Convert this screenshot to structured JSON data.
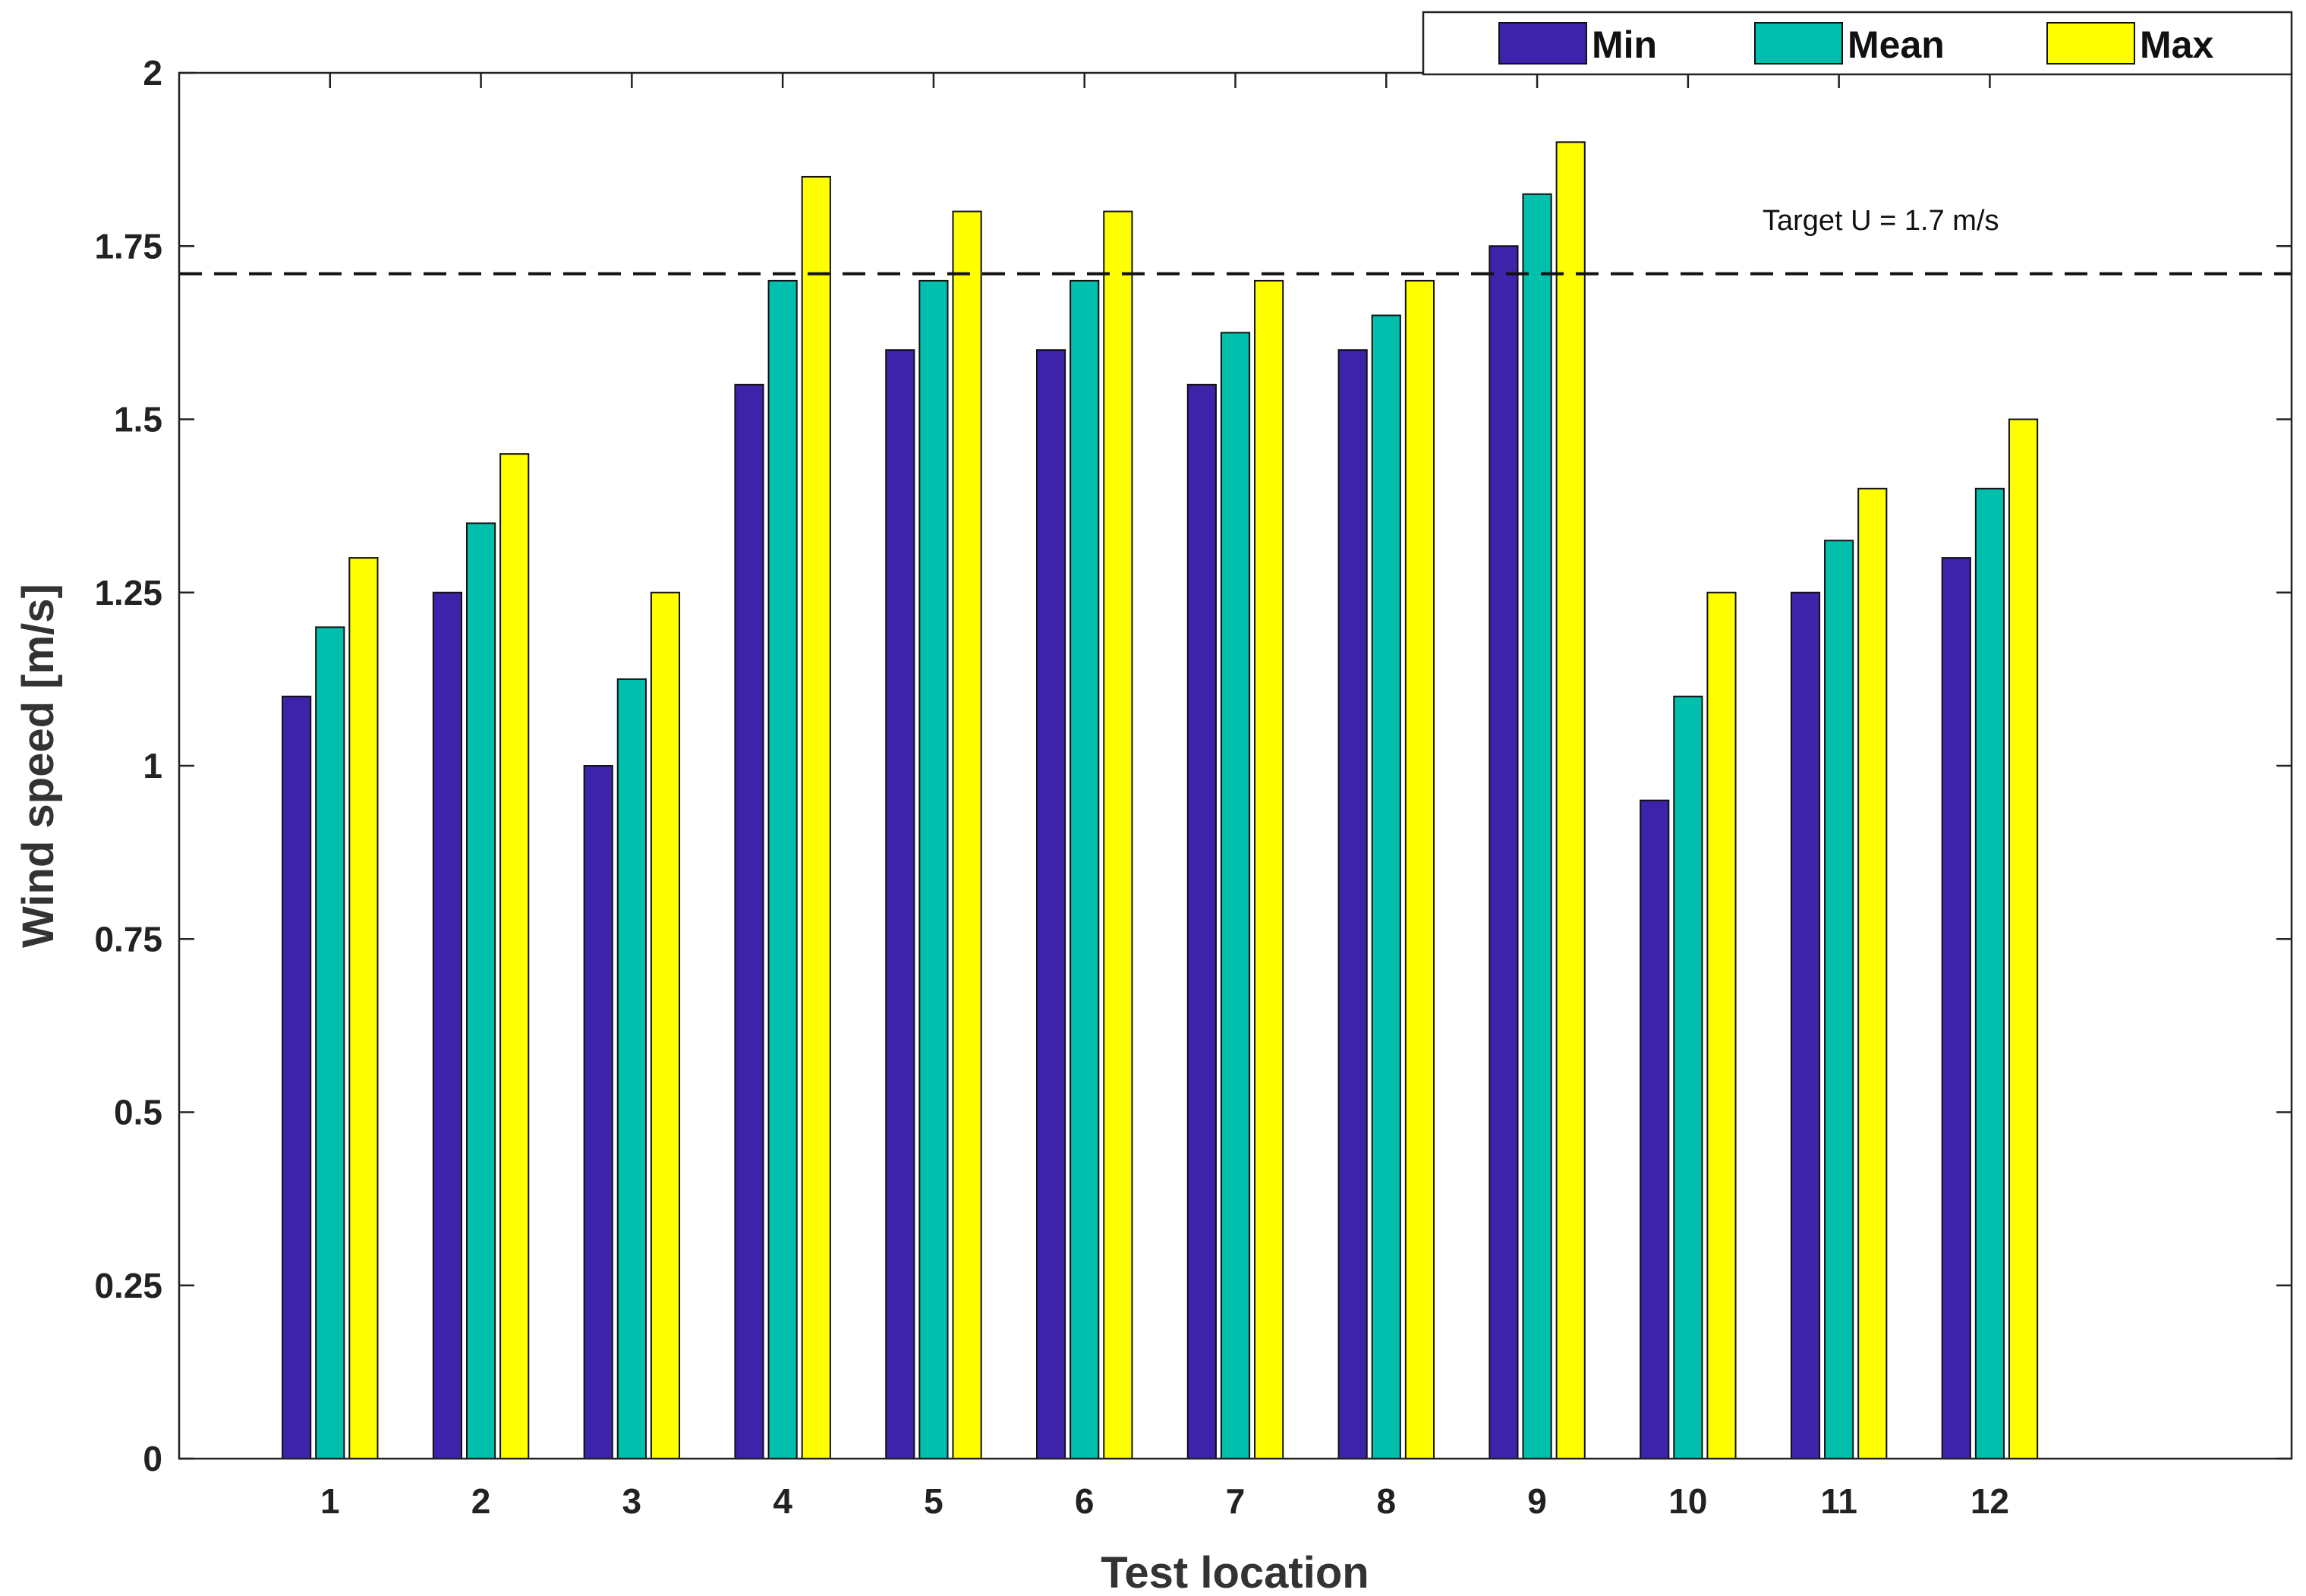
{
  "chart_data": {
    "type": "bar",
    "title": "",
    "xlabel": "Test location",
    "ylabel": "Wind speed [m/s]",
    "categories": [
      "1",
      "2",
      "3",
      "4",
      "5",
      "6",
      "7",
      "8",
      "9",
      "10",
      "11",
      "12"
    ],
    "x_range": [
      0,
      14
    ],
    "ylim": [
      0,
      2
    ],
    "yticks": [
      0,
      0.25,
      0.5,
      0.75,
      1,
      1.25,
      1.5,
      1.75,
      2
    ],
    "ytick_labels": [
      "0",
      "0.25",
      "0.5",
      "0.75",
      "1",
      "1.25",
      "1.5",
      "1.75",
      "2"
    ],
    "grid": false,
    "legend_position": "top-right",
    "series": [
      {
        "name": "Min",
        "color": "#3d22aa",
        "values": [
          1.1,
          1.25,
          1.0,
          1.55,
          1.6,
          1.6,
          1.55,
          1.6,
          1.75,
          0.95,
          1.25,
          1.3
        ]
      },
      {
        "name": "Mean",
        "color": "#00bfad",
        "values": [
          1.2,
          1.35,
          1.125,
          1.7,
          1.7,
          1.7,
          1.625,
          1.65,
          1.825,
          1.1,
          1.325,
          1.4
        ]
      },
      {
        "name": "Max",
        "color": "#ffff00",
        "values": [
          1.3,
          1.45,
          1.25,
          1.85,
          1.8,
          1.8,
          1.7,
          1.7,
          1.9,
          1.25,
          1.4,
          1.5
        ]
      }
    ],
    "reference_line": {
      "value": 1.71,
      "style": "dashed",
      "label": "Target  U = 1.7 m/s"
    }
  }
}
